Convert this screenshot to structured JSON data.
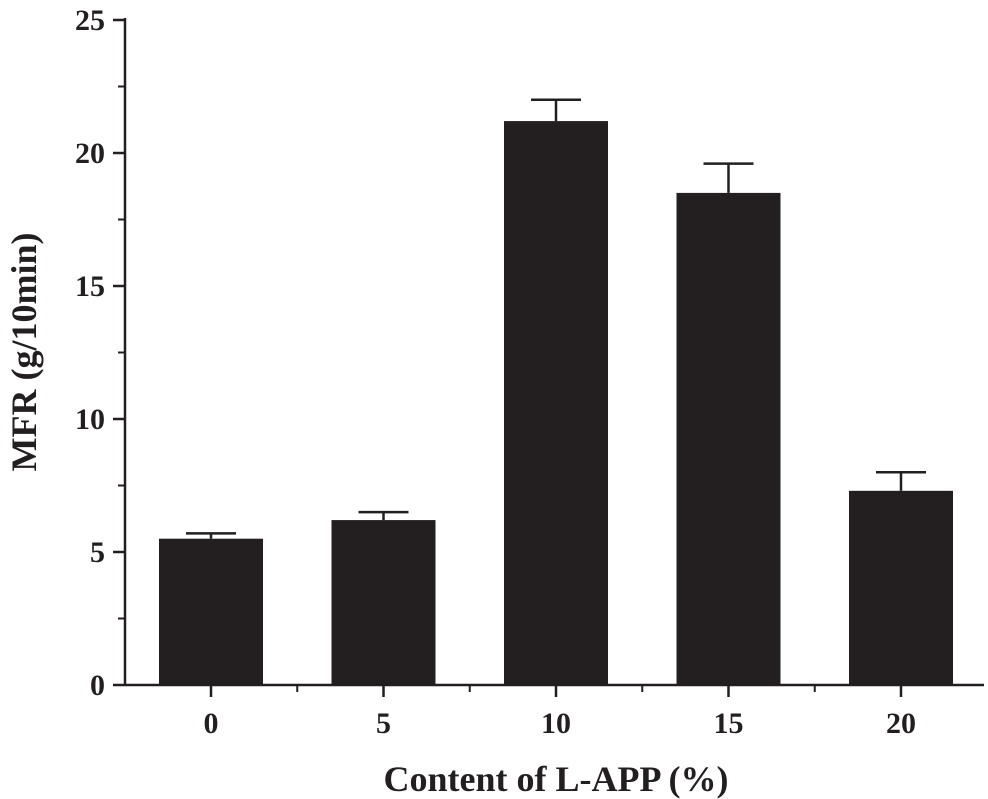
{
  "chart_data": {
    "type": "bar",
    "title": "",
    "xlabel": "Content of L-APP (%)",
    "ylabel": "MFR (g/10min)",
    "categories": [
      "0",
      "5",
      "10",
      "15",
      "20"
    ],
    "values": [
      5.5,
      6.2,
      21.2,
      18.5,
      7.3
    ],
    "error_upper": [
      0.2,
      0.3,
      0.8,
      1.1,
      0.7
    ],
    "ylim": [
      0,
      25
    ],
    "yticks": [
      "0",
      "5",
      "10",
      "15",
      "20",
      "25"
    ],
    "grid": false,
    "colors": {
      "bar": "#231f20",
      "axis": "#231f20",
      "background": "#ffffff"
    }
  }
}
